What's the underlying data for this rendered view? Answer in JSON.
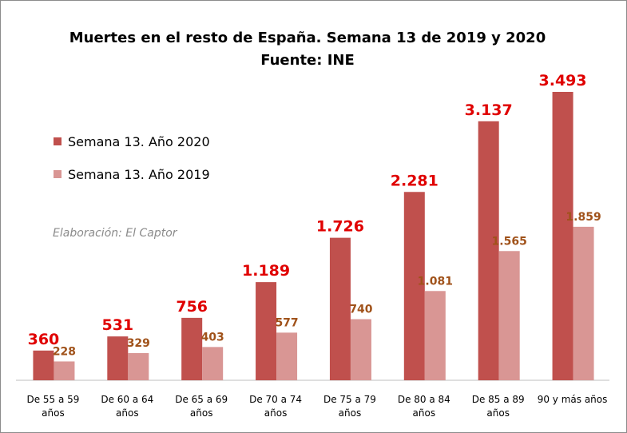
{
  "chart_data": {
    "type": "bar",
    "title": "Muertes en el resto de España. Semana 13 de 2019 y 2020",
    "subtitle": "Fuente: INE",
    "credit": "Elaboración: El Captor",
    "categories": [
      [
        "De 55 a 59",
        "años"
      ],
      [
        "De 60 a 64",
        "años"
      ],
      [
        "De 65 a 69",
        "años"
      ],
      [
        "De 70 a 74",
        "años"
      ],
      [
        "De 75 a 79",
        "años"
      ],
      [
        "De 80 a 84",
        "años"
      ],
      [
        "De 85 a 89",
        "años"
      ],
      [
        "90 y más años"
      ]
    ],
    "series": [
      {
        "name": "Semana 13. Año 2020",
        "color": "#c0504d",
        "label_color": "#e00000",
        "values": [
          360,
          531,
          756,
          1189,
          1726,
          2281,
          3137,
          3493
        ],
        "labels": [
          "360",
          "531",
          "756",
          "1.189",
          "1.726",
          "2.281",
          "3.137",
          "3.493"
        ]
      },
      {
        "name": "Semana 13. Año 2019",
        "color": "#d99694",
        "label_color": "#a0521a",
        "values": [
          228,
          329,
          403,
          577,
          740,
          1081,
          1565,
          1859
        ],
        "labels": [
          "228",
          "329",
          "403",
          "577",
          "740",
          "1.081",
          "1.565",
          "1.859"
        ]
      }
    ],
    "ylim": [
      0,
      3600
    ],
    "legend_position": "top-left",
    "grid": false
  }
}
